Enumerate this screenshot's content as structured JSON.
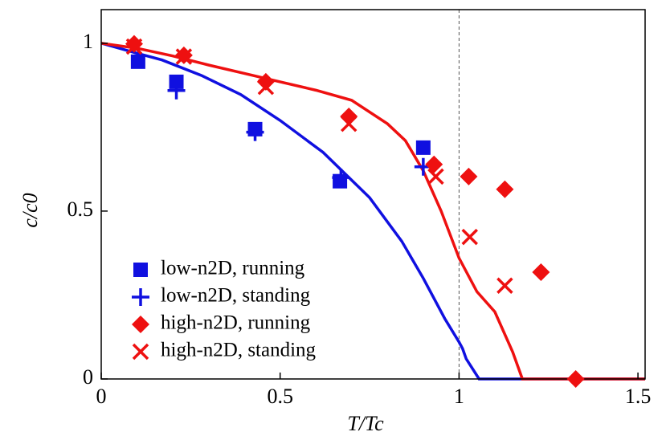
{
  "chart_data": {
    "type": "scatter",
    "x_label": "T/Tc",
    "y_label": "c/c0",
    "xlim": [
      0,
      1.52
    ],
    "ylim": [
      0,
      1.1
    ],
    "xticks": [
      0,
      0.5,
      1,
      1.5
    ],
    "yticks": [
      0,
      0.5,
      1
    ],
    "vline": 1,
    "lines": [
      {
        "color": "#1010e0",
        "x": [
          0,
          0.1,
          0.17,
          0.28,
          0.39,
          0.5,
          0.62,
          0.75,
          0.84,
          0.9,
          0.96,
          1.0,
          1.01,
          1.02,
          1.056,
          1.52
        ],
        "values": [
          1,
          0.97,
          0.95,
          0.904,
          0.847,
          0.77,
          0.675,
          0.54,
          0.41,
          0.3,
          0.18,
          0.11,
          0.09,
          0.06,
          0,
          0
        ]
      },
      {
        "color": "#ee1010",
        "x": [
          0,
          0.1,
          0.2,
          0.3,
          0.4,
          0.5,
          0.6,
          0.7,
          0.8,
          0.85,
          0.9,
          0.95,
          1.0,
          1.05,
          1.1,
          1.15,
          1.177,
          1.52
        ],
        "values": [
          1,
          0.985,
          0.962,
          0.935,
          0.91,
          0.885,
          0.86,
          0.83,
          0.76,
          0.71,
          0.62,
          0.5,
          0.36,
          0.26,
          0.2,
          0.08,
          0,
          0
        ]
      }
    ],
    "series": [
      {
        "name": "low-n2D, running",
        "marker": "square",
        "color": "#1010e0",
        "x": [
          0.103,
          0.21,
          0.43,
          0.667,
          0.9
        ],
        "values": [
          0.945,
          0.885,
          0.744,
          0.589,
          0.689
        ]
      },
      {
        "name": "low-n2D, standing",
        "marker": "plus",
        "color": "#1010e0",
        "x": [
          0.21,
          0.43,
          0.67,
          0.9
        ],
        "values": [
          0.859,
          0.735,
          0.6,
          0.632
        ]
      },
      {
        "name": "high-n2D, running",
        "marker": "diamond",
        "color": "#ee1010",
        "x": [
          0.092,
          0.231,
          0.46,
          0.692,
          0.93,
          1.027,
          1.128,
          1.229,
          1.326
        ],
        "values": [
          0.998,
          0.964,
          0.885,
          0.782,
          0.639,
          0.603,
          0.565,
          0.318,
          0
        ]
      },
      {
        "name": "high-n2D, standing",
        "marker": "cross",
        "color": "#ee1010",
        "x": [
          0.092,
          0.231,
          0.46,
          0.692,
          0.935,
          1.03,
          1.128
        ],
        "values": [
          0.99,
          0.96,
          0.87,
          0.76,
          0.603,
          0.423,
          0.278
        ]
      }
    ]
  }
}
